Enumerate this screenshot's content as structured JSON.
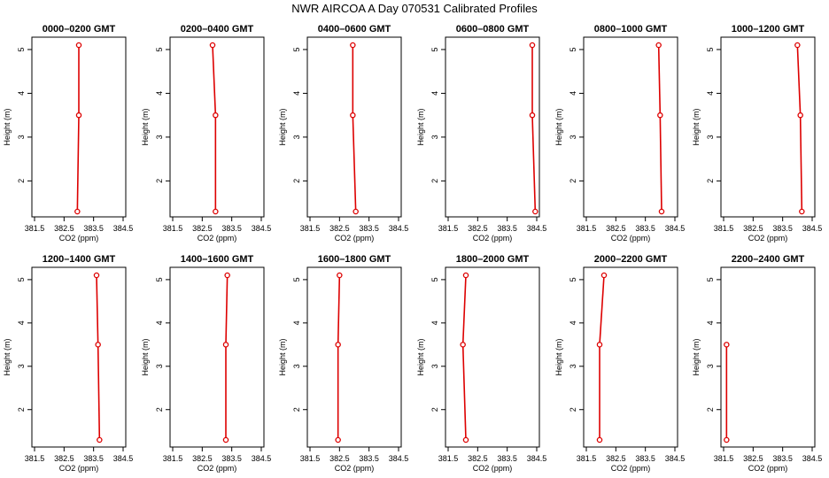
{
  "figure": {
    "title": "NWR AIRCOA A  Day 070531  Calibrated Profiles"
  },
  "style": {
    "line_color": "#dd0000",
    "axis_color": "#000000"
  },
  "chart_data": [
    {
      "type": "line",
      "title": "0000–0200 GMT",
      "xlabel": "CO2 (ppm)",
      "ylabel": "Height (m)",
      "xlim": [
        381.5,
        384.5
      ],
      "ylim": [
        1.3,
        5.1
      ],
      "xticks": [
        "381.5",
        "382.5",
        "383.5",
        "384.5"
      ],
      "yticks": [
        "2",
        "3",
        "4",
        "5"
      ],
      "x": [
        383.0,
        383.0,
        382.95
      ],
      "y": [
        5.1,
        3.5,
        1.3
      ]
    },
    {
      "type": "line",
      "title": "0200–0400 GMT",
      "xlabel": "CO2 (ppm)",
      "ylabel": "Height (m)",
      "xlim": [
        381.5,
        384.5
      ],
      "ylim": [
        1.3,
        5.1
      ],
      "xticks": [
        "381.5",
        "382.5",
        "383.5",
        "384.5"
      ],
      "yticks": [
        "2",
        "3",
        "4",
        "5"
      ],
      "x": [
        382.85,
        382.95,
        382.95
      ],
      "y": [
        5.1,
        3.5,
        1.3
      ]
    },
    {
      "type": "line",
      "title": "0400–0600 GMT",
      "xlabel": "CO2 (ppm)",
      "ylabel": "Height (m)",
      "xlim": [
        381.5,
        384.5
      ],
      "ylim": [
        1.3,
        5.1
      ],
      "xticks": [
        "381.5",
        "382.5",
        "383.5",
        "384.5"
      ],
      "yticks": [
        "2",
        "3",
        "4",
        "5"
      ],
      "x": [
        382.95,
        382.95,
        383.05
      ],
      "y": [
        5.1,
        3.5,
        1.3
      ]
    },
    {
      "type": "line",
      "title": "0600–0800 GMT",
      "xlabel": "CO2 (ppm)",
      "ylabel": "Height (m)",
      "xlim": [
        381.5,
        384.5
      ],
      "ylim": [
        1.3,
        5.1
      ],
      "xticks": [
        "381.5",
        "382.5",
        "383.5",
        "384.5"
      ],
      "yticks": [
        "2",
        "3",
        "4",
        "5"
      ],
      "x": [
        384.35,
        384.35,
        384.45
      ],
      "y": [
        5.1,
        3.5,
        1.3
      ]
    },
    {
      "type": "line",
      "title": "0800–1000 GMT",
      "xlabel": "CO2 (ppm)",
      "ylabel": "Height (m)",
      "xlim": [
        381.5,
        384.5
      ],
      "ylim": [
        1.3,
        5.1
      ],
      "xticks": [
        "381.5",
        "382.5",
        "383.5",
        "384.5"
      ],
      "yticks": [
        "2",
        "3",
        "4",
        "5"
      ],
      "x": [
        383.95,
        384.0,
        384.05
      ],
      "y": [
        5.1,
        3.5,
        1.3
      ]
    },
    {
      "type": "line",
      "title": "1000–1200 GMT",
      "xlabel": "CO2 (ppm)",
      "ylabel": "Height (m)",
      "xlim": [
        381.5,
        384.5
      ],
      "ylim": [
        1.3,
        5.1
      ],
      "xticks": [
        "381.5",
        "382.5",
        "383.5",
        "384.5"
      ],
      "yticks": [
        "2",
        "3",
        "4",
        "5"
      ],
      "x": [
        384.0,
        384.1,
        384.15
      ],
      "y": [
        5.1,
        3.5,
        1.3
      ]
    },
    {
      "type": "line",
      "title": "1200–1400 GMT",
      "xlabel": "CO2 (ppm)",
      "ylabel": "Height (m)",
      "xlim": [
        381.5,
        384.5
      ],
      "ylim": [
        1.3,
        5.1
      ],
      "xticks": [
        "381.5",
        "382.5",
        "383.5",
        "384.5"
      ],
      "yticks": [
        "2",
        "3",
        "4",
        "5"
      ],
      "x": [
        383.6,
        383.65,
        383.7
      ],
      "y": [
        5.1,
        3.5,
        1.3
      ]
    },
    {
      "type": "line",
      "title": "1400–1600 GMT",
      "xlabel": "CO2 (ppm)",
      "ylabel": "Height (m)",
      "xlim": [
        381.5,
        384.5
      ],
      "ylim": [
        1.3,
        5.1
      ],
      "xticks": [
        "381.5",
        "382.5",
        "383.5",
        "384.5"
      ],
      "yticks": [
        "2",
        "3",
        "4",
        "5"
      ],
      "x": [
        383.35,
        383.3,
        383.3
      ],
      "y": [
        5.1,
        3.5,
        1.3
      ]
    },
    {
      "type": "line",
      "title": "1600–1800 GMT",
      "xlabel": "CO2 (ppm)",
      "ylabel": "Height (m)",
      "xlim": [
        381.5,
        384.5
      ],
      "ylim": [
        1.3,
        5.1
      ],
      "xticks": [
        "381.5",
        "382.5",
        "383.5",
        "384.5"
      ],
      "yticks": [
        "2",
        "3",
        "4",
        "5"
      ],
      "x": [
        382.5,
        382.45,
        382.45
      ],
      "y": [
        5.1,
        3.5,
        1.3
      ]
    },
    {
      "type": "line",
      "title": "1800–2000 GMT",
      "xlabel": "CO2 (ppm)",
      "ylabel": "Height (m)",
      "xlim": [
        381.5,
        384.5
      ],
      "ylim": [
        1.3,
        5.1
      ],
      "xticks": [
        "381.5",
        "382.5",
        "383.5",
        "384.5"
      ],
      "yticks": [
        "2",
        "3",
        "4",
        "5"
      ],
      "x": [
        382.1,
        382.0,
        382.1
      ],
      "y": [
        5.1,
        3.5,
        1.3
      ]
    },
    {
      "type": "line",
      "title": "2000–2200 GMT",
      "xlabel": "CO2 (ppm)",
      "ylabel": "Height (m)",
      "xlim": [
        381.5,
        384.5
      ],
      "ylim": [
        1.3,
        5.1
      ],
      "xticks": [
        "381.5",
        "382.5",
        "383.5",
        "384.5"
      ],
      "yticks": [
        "2",
        "3",
        "4",
        "5"
      ],
      "x": [
        382.1,
        381.95,
        381.95
      ],
      "y": [
        5.1,
        3.5,
        1.3
      ]
    },
    {
      "type": "line",
      "title": "2200–2400 GMT",
      "xlabel": "CO2 (ppm)",
      "ylabel": "Height (m)",
      "xlim": [
        381.5,
        384.5
      ],
      "ylim": [
        1.3,
        5.1
      ],
      "xticks": [
        "381.5",
        "382.5",
        "383.5",
        "384.5"
      ],
      "yticks": [
        "2",
        "3",
        "4",
        "5"
      ],
      "x": [
        381.6,
        381.6
      ],
      "y": [
        3.5,
        1.3
      ]
    }
  ]
}
